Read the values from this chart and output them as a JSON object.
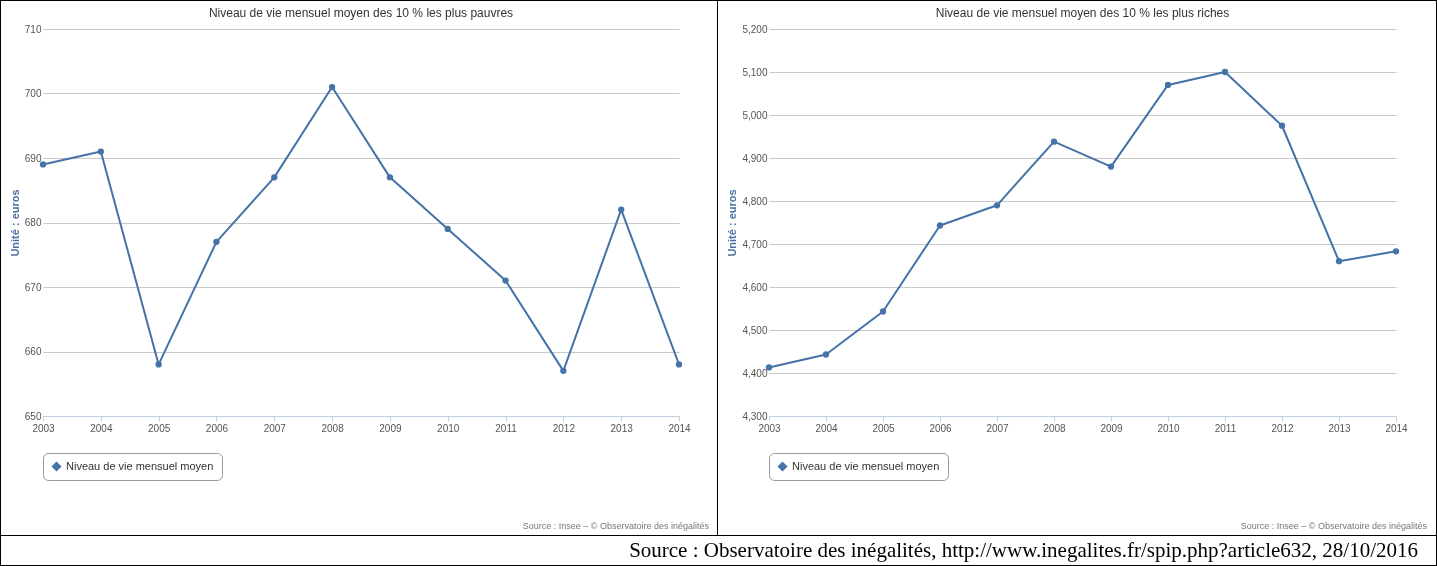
{
  "chart_data": [
    {
      "type": "line",
      "title": "Niveau de vie mensuel moyen des 10 % les plus pauvres",
      "ylabel": "Unité : euros",
      "categories": [
        "2003",
        "2004",
        "2005",
        "2006",
        "2007",
        "2008",
        "2009",
        "2010",
        "2011",
        "2012",
        "2013",
        "2014"
      ],
      "series": [
        {
          "name": "Niveau de vie mensuel moyen",
          "color": "#4572a7",
          "values": [
            689,
            691,
            658,
            677,
            687,
            701,
            687,
            679,
            671,
            657,
            682,
            658
          ]
        }
      ],
      "ylim": [
        650,
        710
      ],
      "yticks": [
        650,
        660,
        670,
        680,
        690,
        700,
        710
      ],
      "grid": "y",
      "legend": "bottom",
      "marker": "circle",
      "annotations": [
        "Source : Insee – © Observatoire des inégalités"
      ]
    },
    {
      "type": "line",
      "title": "Niveau de vie mensuel moyen des 10 % les plus riches",
      "ylabel": "Unité : euros",
      "categories": [
        "2003",
        "2004",
        "2005",
        "2006",
        "2007",
        "2008",
        "2009",
        "2010",
        "2011",
        "2012",
        "2013",
        "2014"
      ],
      "series": [
        {
          "name": "Niveau de vie mensuel moyen",
          "color": "#4572a7",
          "values": [
            4413,
            4443,
            4543,
            4743,
            4790,
            4938,
            4880,
            5070,
            5100,
            4975,
            4660,
            4683
          ]
        }
      ],
      "ylim": [
        4300,
        5200
      ],
      "yticks": [
        {
          "value": 4300,
          "label": "4,300"
        },
        {
          "value": 4400,
          "label": "4,400"
        },
        {
          "value": 4500,
          "label": "4,500"
        },
        {
          "value": 4600,
          "label": "4,600"
        },
        {
          "value": 4700,
          "label": "4,700"
        },
        {
          "value": 4800,
          "label": "4,800"
        },
        {
          "value": 4900,
          "label": "4,900"
        },
        {
          "value": 5000,
          "label": "5,000"
        },
        {
          "value": 5100,
          "label": "5,100"
        },
        {
          "value": 5200,
          "label": "5,200"
        }
      ],
      "grid": "y",
      "legend": "bottom",
      "marker": "circle",
      "annotations": [
        "Source : Insee – © Observatoire des inégalités",
        "Source : Observatoire des inégalités, http://www.inegalites.fr/spip.php?article632, 28/10/2016"
      ]
    }
  ]
}
